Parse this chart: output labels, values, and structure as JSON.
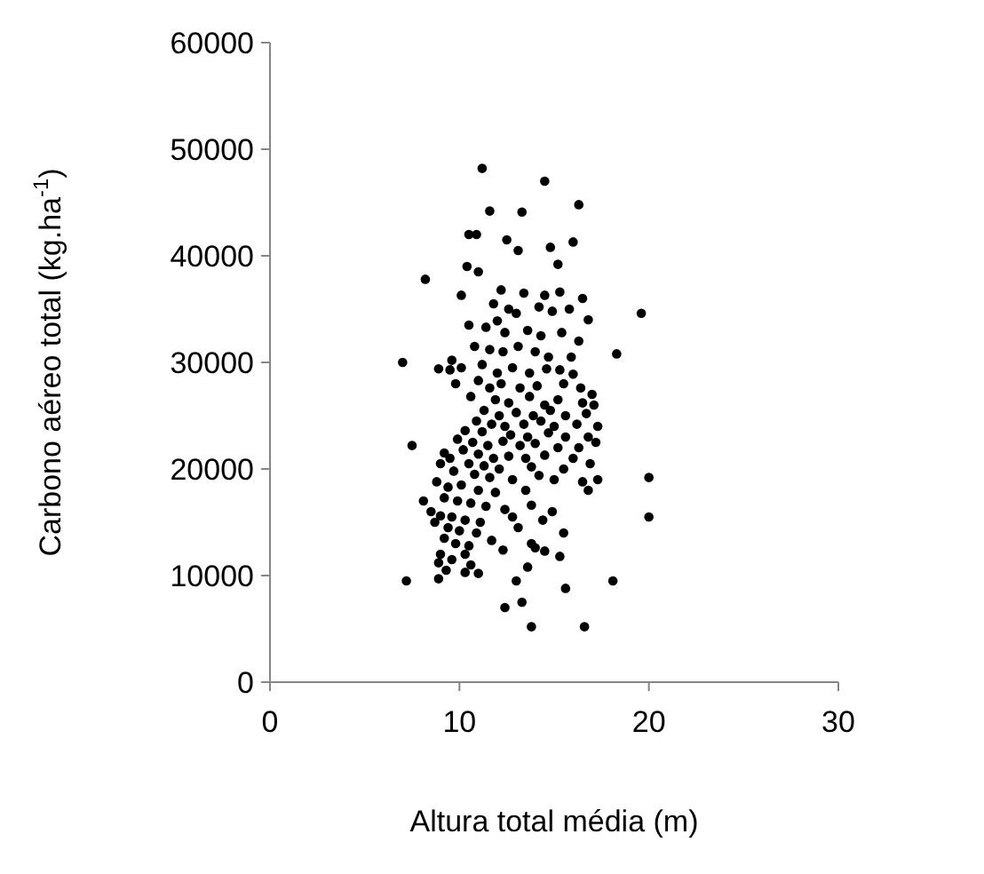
{
  "chart_data": {
    "type": "scatter",
    "xlabel": "Altura total média (m)",
    "ylabel": "Carbono aéreo total (kg.ha$^{-1}$)",
    "xlim": [
      0,
      30
    ],
    "xticks": [
      0,
      10,
      20,
      30
    ],
    "ylim": [
      0,
      60000
    ],
    "yticks": [
      0,
      10000,
      20000,
      30000,
      40000,
      50000,
      60000
    ],
    "grid": false,
    "marker": "circle",
    "series": [
      {
        "color": "#000000",
        "x": [
          11.2,
          14.5,
          16.3,
          11.6,
          10.5,
          10.9,
          13.3,
          12.5,
          14.8,
          16.0,
          13.1,
          15.2,
          10.4,
          11.0,
          8.2,
          12.2,
          13.4,
          14.5,
          15.3,
          16.5,
          10.1,
          11.8,
          12.6,
          13.0,
          14.2,
          14.9,
          15.8,
          16.8,
          19.6,
          10.5,
          11.4,
          12.0,
          12.4,
          13.6,
          14.3,
          15.4,
          16.3,
          10.8,
          11.6,
          12.3,
          13.1,
          14.0,
          14.7,
          15.9,
          18.3,
          9.6,
          7.0,
          8.9,
          9.5,
          10.1,
          11.2,
          12.0,
          12.8,
          13.7,
          14.6,
          15.3,
          16.0,
          9.8,
          11.0,
          11.6,
          12.2,
          13.2,
          14.1,
          15.5,
          16.4,
          17.0,
          10.6,
          11.9,
          12.6,
          13.7,
          14.5,
          15.2,
          16.5,
          17.1,
          11.3,
          12.1,
          13.0,
          13.9,
          14.8,
          15.6,
          16.7,
          10.9,
          11.7,
          12.4,
          13.4,
          14.3,
          15.0,
          16.2,
          17.3,
          10.3,
          11.2,
          12.7,
          13.6,
          14.7,
          15.6,
          16.8,
          9.9,
          10.7,
          11.5,
          12.3,
          13.2,
          14.0,
          15.2,
          16.3,
          17.2,
          7.5,
          10.2,
          11.0,
          11.8,
          12.6,
          13.5,
          14.5,
          16.0,
          9.2,
          9.5,
          9.0,
          10.5,
          11.3,
          12.1,
          13.8,
          15.5,
          16.9,
          9.7,
          10.8,
          11.6,
          12.8,
          14.2,
          15.0,
          16.5,
          17.3,
          20.0,
          8.8,
          9.4,
          10.1,
          11.0,
          11.9,
          13.5,
          16.8,
          8.1,
          9.2,
          9.9,
          10.6,
          11.4,
          12.4,
          13.8,
          14.9,
          8.5,
          9.0,
          9.6,
          10.3,
          11.1,
          12.8,
          14.4,
          20.0,
          8.7,
          9.4,
          10.0,
          10.9,
          13.1,
          15.5,
          9.2,
          9.8,
          10.5,
          11.7,
          13.8,
          14.5,
          9.0,
          10.3,
          12.3,
          15.3,
          8.9,
          9.6,
          10.6,
          13.6,
          14.0,
          9.3,
          10.3,
          11.0,
          13.0,
          15.6,
          18.1,
          7.2,
          8.9,
          12.4,
          13.3,
          13.8,
          16.6
        ],
        "values": [
          48200,
          47000,
          44800,
          44200,
          42000,
          42000,
          44100,
          41500,
          40800,
          41300,
          40500,
          39200,
          39000,
          38500,
          37800,
          36800,
          36500,
          36300,
          36600,
          36000,
          36300,
          35500,
          35000,
          34600,
          35200,
          34800,
          35000,
          34000,
          34600,
          33500,
          33300,
          33900,
          32800,
          33000,
          32500,
          32800,
          32000,
          31500,
          31200,
          31000,
          31500,
          31000,
          30500,
          30500,
          30800,
          30200,
          30000,
          29400,
          29300,
          29500,
          29800,
          29000,
          29500,
          29000,
          29400,
          29300,
          28900,
          28000,
          28300,
          27600,
          28000,
          27600,
          27800,
          28000,
          27600,
          27000,
          26800,
          26500,
          26200,
          26800,
          26000,
          26500,
          26200,
          26000,
          25500,
          25000,
          25300,
          25000,
          25500,
          25000,
          25200,
          24500,
          24200,
          24000,
          24200,
          24500,
          24000,
          24200,
          24000,
          23600,
          23500,
          23200,
          23000,
          23400,
          23000,
          23000,
          22800,
          22500,
          22200,
          22600,
          22200,
          22400,
          22000,
          22000,
          22500,
          22200,
          21800,
          21400,
          21000,
          21200,
          21000,
          21300,
          21000,
          21500,
          21000,
          20500,
          20500,
          20300,
          20000,
          20200,
          20000,
          20500,
          19800,
          19500,
          19200,
          19000,
          19400,
          19000,
          18800,
          19000,
          19200,
          18800,
          18300,
          18500,
          18000,
          17800,
          18000,
          18000,
          17000,
          17300,
          17000,
          16800,
          16500,
          16200,
          16600,
          16000,
          16000,
          15600,
          15500,
          15200,
          15000,
          15500,
          15200,
          15500,
          15000,
          14500,
          14200,
          14000,
          14500,
          14000,
          13500,
          13000,
          12800,
          13300,
          13000,
          12300,
          12000,
          12000,
          12400,
          11800,
          11200,
          11500,
          11000,
          10800,
          12600,
          10500,
          10300,
          10200,
          9500,
          8800,
          9500,
          9500,
          9700,
          7000,
          7500,
          5200,
          5200
        ]
      }
    ]
  }
}
